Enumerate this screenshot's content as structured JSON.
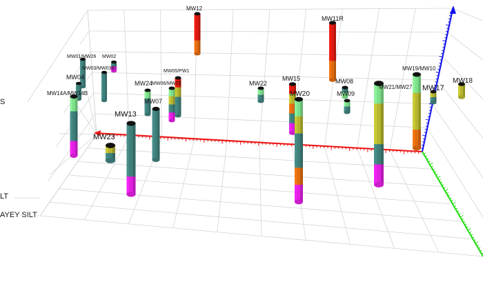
{
  "side_labels": [
    "S",
    "LT",
    "AYEY SILT"
  ],
  "axis_colors": {
    "x": "#ee1111",
    "y": "#22dd11",
    "z": "#1111ee"
  },
  "layer_colors": {
    "fill": "#dd1a10",
    "silt": "#7ddf8a",
    "clayey_silt": "#b5b52f",
    "sand": "#3f7f7a",
    "gravel": "#e06a10",
    "bedrock": "#e020e0",
    "cap": "#111111"
  },
  "wells": [
    {
      "name": "MW12",
      "layers": [
        "fill",
        "fill",
        "gravel"
      ]
    },
    {
      "name": "MW11R",
      "layers": [
        "fill",
        "fill",
        "gravel"
      ]
    },
    {
      "name": "MW01/MW26",
      "layers": [
        "sand",
        "sand"
      ]
    },
    {
      "name": "MW02",
      "layers": [
        "sand",
        "bedrock"
      ]
    },
    {
      "name": "MW03/MW03B",
      "layers": [
        "sand",
        "sand"
      ]
    },
    {
      "name": "MW04",
      "layers": [
        "sand",
        "sand"
      ]
    },
    {
      "name": "MW14A/MW14B",
      "layers": [
        "silt",
        "sand",
        "sand",
        "bedrock"
      ]
    },
    {
      "name": "MW05/PW1",
      "layers": [
        "fill",
        "clayey_silt",
        "sand",
        "sand"
      ]
    },
    {
      "name": "MW06/MW25",
      "layers": [
        "silt",
        "clayey_silt",
        "sand",
        "bedrock"
      ]
    },
    {
      "name": "MW24",
      "layers": [
        "silt",
        "sand",
        "sand"
      ]
    },
    {
      "name": "MW07",
      "layers": [
        "sand",
        "sand",
        "sand"
      ]
    },
    {
      "name": "MW13",
      "layers": [
        "sand",
        "sand",
        "sand",
        "bedrock"
      ]
    },
    {
      "name": "MW23",
      "layers": [
        "clayey_silt",
        "sand"
      ]
    },
    {
      "name": "MW22",
      "layers": [
        "silt",
        "sand"
      ]
    },
    {
      "name": "MW15",
      "layers": [
        "fill",
        "clayey_silt",
        "gravel",
        "sand",
        "bedrock"
      ]
    },
    {
      "name": "MW20",
      "layers": [
        "silt",
        "clayey_silt",
        "sand",
        "sand",
        "gravel",
        "bedrock"
      ]
    },
    {
      "name": "MW08",
      "layers": [
        "sand",
        "silt"
      ]
    },
    {
      "name": "MW09",
      "layers": [
        "silt",
        "sand"
      ]
    },
    {
      "name": "MW21/MW27",
      "layers": [
        "silt",
        "clayey_silt",
        "clayey_silt",
        "sand",
        "bedrock"
      ]
    },
    {
      "name": "MW19/MW10",
      "layers": [
        "silt",
        "clayey_silt",
        "clayey_silt",
        "gravel"
      ]
    },
    {
      "name": "MW17",
      "layers": [
        "clayey_silt",
        "sand"
      ]
    },
    {
      "name": "MW18",
      "layers": [
        "clayey_silt"
      ]
    }
  ]
}
